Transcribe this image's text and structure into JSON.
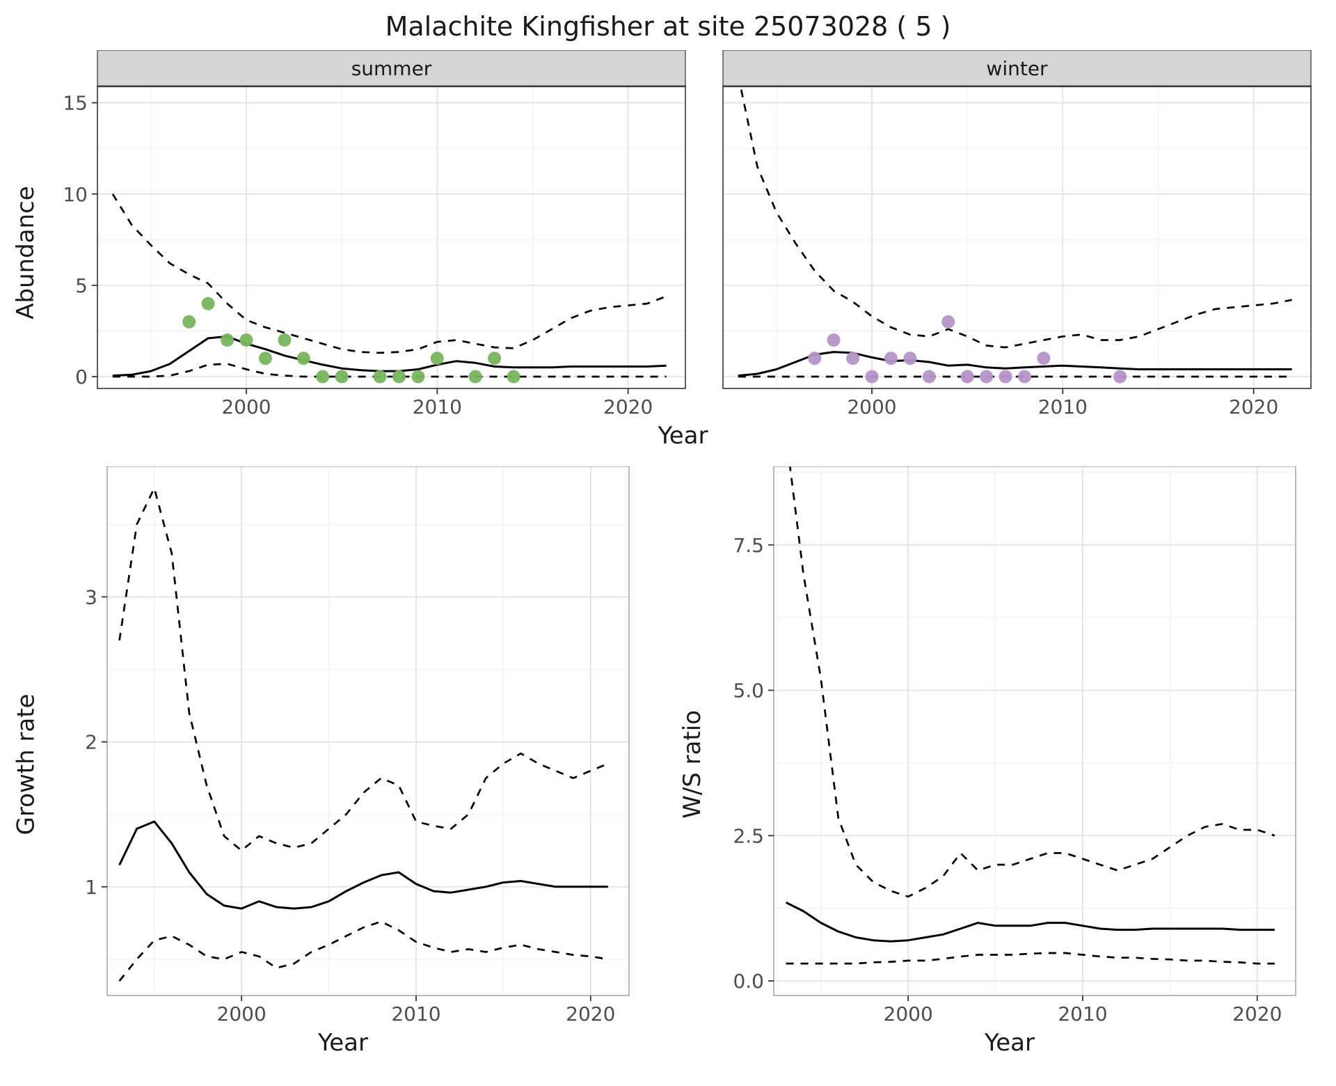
{
  "title": "Malachite Kingfisher at site 25073028 ( 5 )",
  "labels": {
    "year": "Year",
    "abundance": "Abundance",
    "growth_rate": "Growth rate",
    "ws_ratio": "W/S ratio"
  },
  "colors": {
    "summer_points": "#77B55B",
    "winter_points": "#B592C9",
    "line": "#000000",
    "strip_bg": "#D5D5D5",
    "grid_major": "#E2E2E2",
    "grid_minor": "#EFEFEF",
    "axis_text": "#4D4D4D"
  },
  "chart_data": [
    {
      "id": "abundance-summer",
      "type": "line",
      "facet_label": "summer",
      "xlabel": "Year",
      "ylabel": "Abundance",
      "xlim": [
        1992.2,
        2023.0
      ],
      "ylim": [
        -0.65,
        15.9
      ],
      "xticks": [
        2000,
        2010,
        2020
      ],
      "yticks": [
        0,
        5,
        10,
        15
      ],
      "ytick_labels": [
        "0",
        "5",
        "10",
        "15"
      ],
      "x": [
        1993,
        1994,
        1995,
        1996,
        1997,
        1998,
        1999,
        2000,
        2001,
        2002,
        2003,
        2004,
        2005,
        2006,
        2007,
        2008,
        2009,
        2010,
        2011,
        2012,
        2013,
        2014,
        2015,
        2016,
        2017,
        2018,
        2019,
        2020,
        2021,
        2022
      ],
      "series": [
        {
          "name": "upper-95ci",
          "style": "dashed",
          "values": [
            10.0,
            8.3,
            7.2,
            6.2,
            5.6,
            5.1,
            4.0,
            3.1,
            2.7,
            2.4,
            2.1,
            1.8,
            1.5,
            1.35,
            1.3,
            1.35,
            1.5,
            1.9,
            2.0,
            1.8,
            1.6,
            1.55,
            2.0,
            2.6,
            3.2,
            3.6,
            3.8,
            3.9,
            4.0,
            4.4
          ]
        },
        {
          "name": "estimate",
          "style": "solid",
          "values": [
            0.05,
            0.1,
            0.3,
            0.7,
            1.4,
            2.1,
            2.2,
            1.8,
            1.5,
            1.15,
            0.9,
            0.65,
            0.45,
            0.35,
            0.3,
            0.3,
            0.4,
            0.65,
            0.85,
            0.75,
            0.55,
            0.5,
            0.5,
            0.5,
            0.55,
            0.55,
            0.55,
            0.55,
            0.55,
            0.6
          ]
        },
        {
          "name": "lower-95ci",
          "style": "dashed",
          "values": [
            0,
            0,
            0,
            0.05,
            0.3,
            0.65,
            0.7,
            0.4,
            0.15,
            0.05,
            0,
            0,
            0,
            0,
            0,
            0,
            0,
            0,
            0,
            0,
            0,
            0,
            0,
            0,
            0,
            0,
            0,
            0,
            0,
            0
          ]
        },
        {
          "name": "observed-counts",
          "style": "points",
          "color_key": "summer_points",
          "points": [
            [
              1997,
              3
            ],
            [
              1998,
              4
            ],
            [
              1999,
              2
            ],
            [
              2000,
              2
            ],
            [
              2001,
              1
            ],
            [
              2002,
              2
            ],
            [
              2003,
              1
            ],
            [
              2004,
              0
            ],
            [
              2005,
              0
            ],
            [
              2007,
              0
            ],
            [
              2008,
              0
            ],
            [
              2009,
              0
            ],
            [
              2010,
              1
            ],
            [
              2012,
              0
            ],
            [
              2013,
              1
            ],
            [
              2014,
              0
            ]
          ]
        }
      ]
    },
    {
      "id": "abundance-winter",
      "type": "line",
      "facet_label": "winter",
      "xlabel": "Year",
      "ylabel": "Abundance",
      "xlim": [
        1992.2,
        2023.0
      ],
      "ylim": [
        -0.65,
        15.9
      ],
      "xticks": [
        2000,
        2010,
        2020
      ],
      "yticks": [
        0,
        5,
        10,
        15
      ],
      "ytick_labels": [
        "0",
        "5",
        "10",
        "15"
      ],
      "x": [
        1993,
        1994,
        1995,
        1996,
        1997,
        1998,
        1999,
        2000,
        2001,
        2002,
        2003,
        2004,
        2005,
        2006,
        2007,
        2008,
        2009,
        2010,
        2011,
        2012,
        2013,
        2014,
        2015,
        2016,
        2017,
        2018,
        2019,
        2020,
        2021,
        2022
      ],
      "series": [
        {
          "name": "upper-95ci",
          "style": "dashed",
          "values": [
            16.5,
            11.5,
            9.0,
            7.3,
            5.8,
            4.7,
            4.1,
            3.3,
            2.7,
            2.3,
            2.2,
            2.6,
            2.2,
            1.7,
            1.6,
            1.8,
            2.0,
            2.2,
            2.3,
            2.0,
            2.0,
            2.2,
            2.6,
            3.0,
            3.4,
            3.7,
            3.8,
            3.9,
            4.0,
            4.2
          ]
        },
        {
          "name": "estimate",
          "style": "solid",
          "values": [
            0.05,
            0.15,
            0.4,
            0.8,
            1.2,
            1.35,
            1.3,
            1.05,
            0.85,
            0.9,
            0.8,
            0.6,
            0.65,
            0.5,
            0.45,
            0.5,
            0.55,
            0.6,
            0.55,
            0.5,
            0.45,
            0.4,
            0.4,
            0.4,
            0.4,
            0.4,
            0.4,
            0.4,
            0.4,
            0.4
          ]
        },
        {
          "name": "lower-95ci",
          "style": "dashed",
          "values": [
            0,
            0,
            0,
            0,
            0,
            0,
            0,
            0,
            0,
            0,
            0,
            0,
            0,
            0,
            0,
            0,
            0,
            0,
            0,
            0,
            0,
            0,
            0,
            0,
            0,
            0,
            0,
            0,
            0,
            0
          ]
        },
        {
          "name": "observed-counts",
          "style": "points",
          "color_key": "winter_points",
          "points": [
            [
              1997,
              1
            ],
            [
              1998,
              2
            ],
            [
              1999,
              1
            ],
            [
              2000,
              0
            ],
            [
              2001,
              1
            ],
            [
              2002,
              1
            ],
            [
              2003,
              0
            ],
            [
              2004,
              3
            ],
            [
              2005,
              0
            ],
            [
              2006,
              0
            ],
            [
              2007,
              0
            ],
            [
              2008,
              0
            ],
            [
              2009,
              1
            ],
            [
              2013,
              0
            ]
          ]
        }
      ]
    },
    {
      "id": "growth-rate",
      "type": "line",
      "facet_label": null,
      "xlabel": "Year",
      "ylabel": "Growth rate",
      "xlim": [
        1992.3,
        2022.2
      ],
      "ylim": [
        0.25,
        3.9
      ],
      "xticks": [
        2000,
        2010,
        2020
      ],
      "yticks": [
        1,
        2,
        3
      ],
      "ytick_labels": [
        "1",
        "2",
        "3"
      ],
      "x": [
        1993,
        1994,
        1995,
        1996,
        1997,
        1998,
        1999,
        2000,
        2001,
        2002,
        2003,
        2004,
        2005,
        2006,
        2007,
        2008,
        2009,
        2010,
        2011,
        2012,
        2013,
        2014,
        2015,
        2016,
        2017,
        2018,
        2019,
        2020,
        2021
      ],
      "series": [
        {
          "name": "upper-95ci",
          "style": "dashed",
          "values": [
            2.7,
            3.5,
            3.75,
            3.3,
            2.2,
            1.7,
            1.35,
            1.25,
            1.35,
            1.3,
            1.27,
            1.3,
            1.4,
            1.5,
            1.65,
            1.75,
            1.7,
            1.45,
            1.42,
            1.4,
            1.5,
            1.75,
            1.85,
            1.92,
            1.85,
            1.8,
            1.75,
            1.8,
            1.85
          ]
        },
        {
          "name": "estimate",
          "style": "solid",
          "values": [
            1.15,
            1.4,
            1.45,
            1.3,
            1.1,
            0.95,
            0.87,
            0.85,
            0.9,
            0.86,
            0.85,
            0.86,
            0.9,
            0.97,
            1.03,
            1.08,
            1.1,
            1.02,
            0.97,
            0.96,
            0.98,
            1.0,
            1.03,
            1.04,
            1.02,
            1.0,
            1.0,
            1.0,
            1.0
          ]
        },
        {
          "name": "lower-95ci",
          "style": "dashed",
          "values": [
            0.35,
            0.5,
            0.63,
            0.66,
            0.6,
            0.52,
            0.5,
            0.55,
            0.52,
            0.44,
            0.47,
            0.55,
            0.6,
            0.66,
            0.72,
            0.76,
            0.7,
            0.62,
            0.58,
            0.55,
            0.57,
            0.55,
            0.58,
            0.6,
            0.57,
            0.55,
            0.53,
            0.52,
            0.5
          ]
        }
      ]
    },
    {
      "id": "ws-ratio",
      "type": "line",
      "facet_label": null,
      "xlabel": "Year",
      "ylabel": "W/S ratio",
      "xlim": [
        1992.3,
        2022.2
      ],
      "ylim": [
        -0.25,
        8.85
      ],
      "xticks": [
        2000,
        2010,
        2020
      ],
      "yticks": [
        0,
        2.5,
        5,
        7.5
      ],
      "ytick_labels": [
        "0.0",
        "2.5",
        "5.0",
        "7.5"
      ],
      "x": [
        1993,
        1994,
        1995,
        1996,
        1997,
        1998,
        1999,
        2000,
        2001,
        2002,
        2003,
        2004,
        2005,
        2006,
        2007,
        2008,
        2009,
        2010,
        2011,
        2012,
        2013,
        2014,
        2015,
        2016,
        2017,
        2018,
        2019,
        2020,
        2021
      ],
      "series": [
        {
          "name": "upper-95ci",
          "style": "dashed",
          "values": [
            9.4,
            7.0,
            5.2,
            2.8,
            2.0,
            1.7,
            1.55,
            1.45,
            1.6,
            1.8,
            2.2,
            1.9,
            2.0,
            2.0,
            2.1,
            2.2,
            2.2,
            2.1,
            2.0,
            1.9,
            2.0,
            2.1,
            2.3,
            2.5,
            2.65,
            2.7,
            2.6,
            2.6,
            2.5
          ]
        },
        {
          "name": "estimate",
          "style": "solid",
          "values": [
            1.35,
            1.2,
            1.0,
            0.85,
            0.75,
            0.7,
            0.68,
            0.7,
            0.75,
            0.8,
            0.9,
            1.0,
            0.95,
            0.95,
            0.95,
            1.0,
            1.0,
            0.95,
            0.9,
            0.88,
            0.88,
            0.9,
            0.9,
            0.9,
            0.9,
            0.9,
            0.88,
            0.88,
            0.88
          ]
        },
        {
          "name": "lower-95ci",
          "style": "dashed",
          "values": [
            0.3,
            0.3,
            0.3,
            0.3,
            0.3,
            0.32,
            0.33,
            0.35,
            0.35,
            0.38,
            0.42,
            0.45,
            0.45,
            0.45,
            0.47,
            0.48,
            0.48,
            0.45,
            0.42,
            0.4,
            0.4,
            0.38,
            0.37,
            0.35,
            0.35,
            0.33,
            0.32,
            0.3,
            0.3
          ]
        }
      ]
    }
  ]
}
